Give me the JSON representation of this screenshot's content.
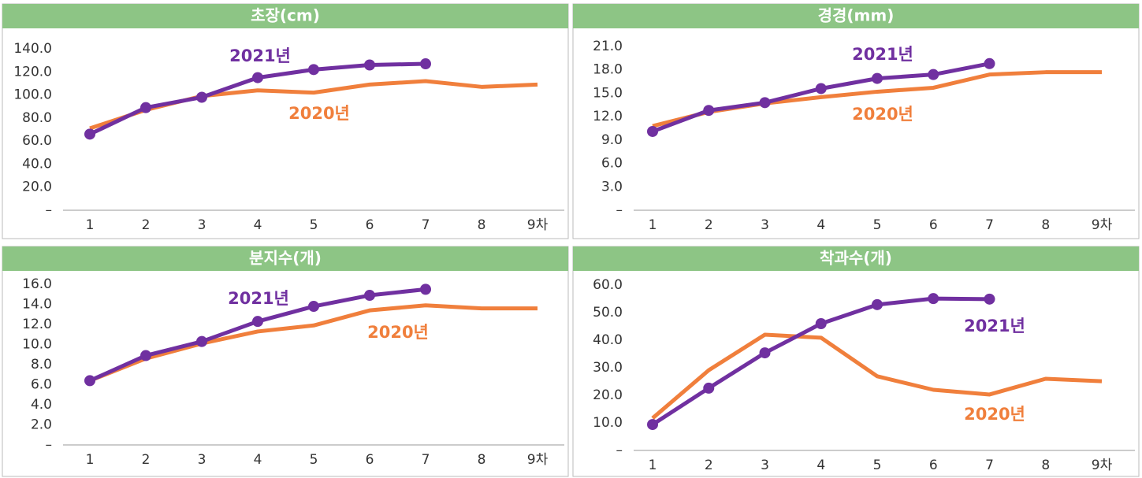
{
  "chart_data": [
    {
      "type": "line",
      "title": "초장(cm)",
      "categories": [
        "1",
        "2",
        "3",
        "4",
        "5",
        "6",
        "7",
        "8",
        "9차"
      ],
      "ylim": [
        0,
        140
      ],
      "yticks": [
        {
          "value": 0,
          "label": "–"
        },
        {
          "value": 20,
          "label": "20.0"
        },
        {
          "value": 40,
          "label": "40.0"
        },
        {
          "value": 60,
          "label": "60.0"
        },
        {
          "value": 80,
          "label": "80.0"
        },
        {
          "value": 100,
          "label": "100.0"
        },
        {
          "value": 120,
          "label": "120.0"
        },
        {
          "value": 140,
          "label": "140.0"
        }
      ],
      "series": [
        {
          "name": "2020년",
          "color": "#f07f3c",
          "markers": false,
          "values": [
            71,
            87,
            99,
            104,
            102,
            109,
            112,
            107,
            109
          ]
        },
        {
          "name": "2021년",
          "color": "#7030a0",
          "markers": true,
          "values": [
            66,
            89,
            98,
            115,
            122,
            126,
            127,
            null,
            null
          ]
        }
      ]
    },
    {
      "type": "line",
      "title": "경경(mm)",
      "categories": [
        "1",
        "2",
        "3",
        "4",
        "5",
        "6",
        "7",
        "8",
        "9차"
      ],
      "ylim": [
        0,
        21
      ],
      "yticks": [
        {
          "value": 0,
          "label": "–"
        },
        {
          "value": 3,
          "label": "3.0"
        },
        {
          "value": 6,
          "label": "6.0"
        },
        {
          "value": 9,
          "label": "9.0"
        },
        {
          "value": 12,
          "label": "12.0"
        },
        {
          "value": 15,
          "label": "15.0"
        },
        {
          "value": 18,
          "label": "18.0"
        },
        {
          "value": 21,
          "label": "21.0"
        }
      ],
      "series": [
        {
          "name": "2020년",
          "color": "#f07f3c",
          "markers": false,
          "values": [
            10.8,
            12.6,
            13.7,
            14.5,
            15.2,
            15.7,
            17.4,
            17.7,
            17.7
          ]
        },
        {
          "name": "2021년",
          "color": "#7030a0",
          "markers": true,
          "values": [
            10.1,
            12.8,
            13.8,
            15.6,
            16.9,
            17.4,
            18.8,
            null,
            null
          ]
        }
      ]
    },
    {
      "type": "line",
      "title": "분지수(개)",
      "categories": [
        "1",
        "2",
        "3",
        "4",
        "5",
        "6",
        "7",
        "8",
        "9차"
      ],
      "ylim": [
        0,
        16
      ],
      "yticks": [
        {
          "value": 0,
          "label": "–"
        },
        {
          "value": 2,
          "label": "2.0"
        },
        {
          "value": 4,
          "label": "4.0"
        },
        {
          "value": 6,
          "label": "6.0"
        },
        {
          "value": 8,
          "label": "8.0"
        },
        {
          "value": 10,
          "label": "10.0"
        },
        {
          "value": 12,
          "label": "12.0"
        },
        {
          "value": 14,
          "label": "14.0"
        },
        {
          "value": 16,
          "label": "16.0"
        }
      ],
      "series": [
        {
          "name": "2020년",
          "color": "#f07f3c",
          "markers": false,
          "values": [
            6.4,
            8.6,
            10.1,
            11.3,
            11.9,
            13.4,
            13.9,
            13.6,
            13.6
          ]
        },
        {
          "name": "2021년",
          "color": "#7030a0",
          "markers": true,
          "values": [
            6.4,
            8.9,
            10.3,
            12.3,
            13.8,
            14.9,
            15.5,
            null,
            null
          ]
        }
      ]
    },
    {
      "type": "line",
      "title": "착과수(개)",
      "categories": [
        "1",
        "2",
        "3",
        "4",
        "5",
        "6",
        "7",
        "8",
        "9차"
      ],
      "ylim": [
        0,
        60
      ],
      "yticks": [
        {
          "value": 0,
          "label": "–"
        },
        {
          "value": 10,
          "label": "10.0"
        },
        {
          "value": 20,
          "label": "20.0"
        },
        {
          "value": 30,
          "label": "30.0"
        },
        {
          "value": 40,
          "label": "40.0"
        },
        {
          "value": 50,
          "label": "50.0"
        },
        {
          "value": 60,
          "label": "60.0"
        }
      ],
      "series": [
        {
          "name": "2020년",
          "color": "#f07f3c",
          "markers": false,
          "values": [
            11.7,
            29.1,
            42,
            40.9,
            26.9,
            22,
            20.3,
            26,
            25.1
          ]
        },
        {
          "name": "2021년",
          "color": "#7030a0",
          "markers": true,
          "values": [
            9.4,
            22.6,
            35.4,
            46,
            52.9,
            55.1,
            54.9,
            null,
            null
          ]
        }
      ]
    }
  ]
}
